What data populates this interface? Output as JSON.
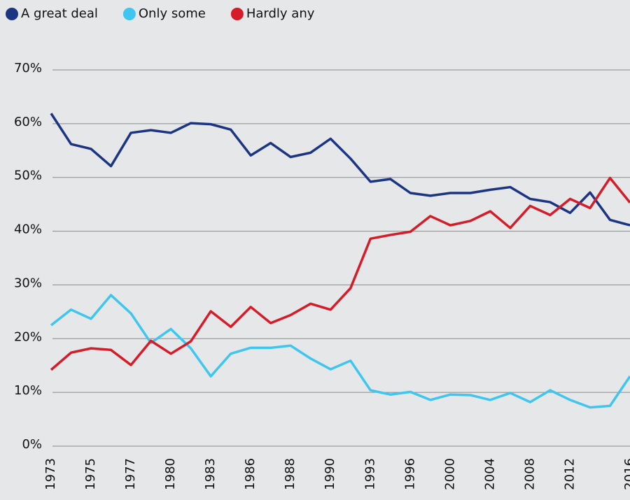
{
  "chart_data": {
    "type": "line",
    "categories": [
      "1973",
      null,
      "1975",
      null,
      "1977",
      null,
      "1980",
      null,
      "1983",
      null,
      "1986",
      null,
      "1988",
      null,
      "1990",
      null,
      "1993",
      null,
      "1996",
      null,
      "2000",
      null,
      "2004",
      null,
      "2008",
      null,
      "2012",
      null,
      null,
      "2016"
    ],
    "series": [
      {
        "name": "A great deal",
        "color": "#1c3583",
        "values": [
          61.9,
          56.2,
          55.3,
          52.1,
          58.3,
          58.8,
          58.3,
          60.1,
          59.9,
          58.9,
          54.1,
          56.4,
          53.8,
          54.6,
          57.2,
          53.5,
          49.2,
          49.7,
          47.1,
          46.6,
          47.1,
          47.1,
          47.7,
          48.2,
          46.0,
          45.4,
          43.4,
          47.2,
          42.1,
          41.1
        ]
      },
      {
        "name": "Only some",
        "color": "#3ec6f0",
        "values": [
          22.5,
          25.4,
          23.7,
          28.1,
          24.7,
          19.2,
          21.8,
          18.2,
          13.0,
          17.2,
          18.3,
          18.3,
          18.7,
          16.3,
          14.3,
          15.9,
          10.4,
          9.6,
          10.1,
          8.6,
          9.6,
          9.5,
          8.6,
          9.9,
          8.2,
          10.4,
          8.6,
          7.2,
          7.5,
          13.0
        ]
      },
      {
        "name": "Hardly any",
        "color": "#d51c29",
        "values": [
          14.2,
          17.4,
          18.2,
          17.9,
          15.1,
          19.6,
          17.2,
          19.5,
          25.1,
          22.2,
          25.9,
          22.9,
          24.4,
          26.5,
          25.4,
          29.4,
          38.6,
          39.3,
          39.9,
          42.8,
          41.1,
          41.9,
          43.7,
          40.6,
          44.7,
          43.0,
          46.0,
          44.3,
          49.9,
          45.3
        ]
      }
    ],
    "ylim": [
      0,
      70
    ],
    "yticks": [
      {
        "value": 0,
        "label": "0%"
      },
      {
        "value": 10,
        "label": "10%"
      },
      {
        "value": 20,
        "label": "20%"
      },
      {
        "value": 30,
        "label": "30%"
      },
      {
        "value": 40,
        "label": "40%"
      },
      {
        "value": 50,
        "label": "50%"
      },
      {
        "value": 60,
        "label": "60%"
      },
      {
        "value": 70,
        "label": "70%"
      }
    ],
    "grid": true,
    "legend": "top-left"
  }
}
